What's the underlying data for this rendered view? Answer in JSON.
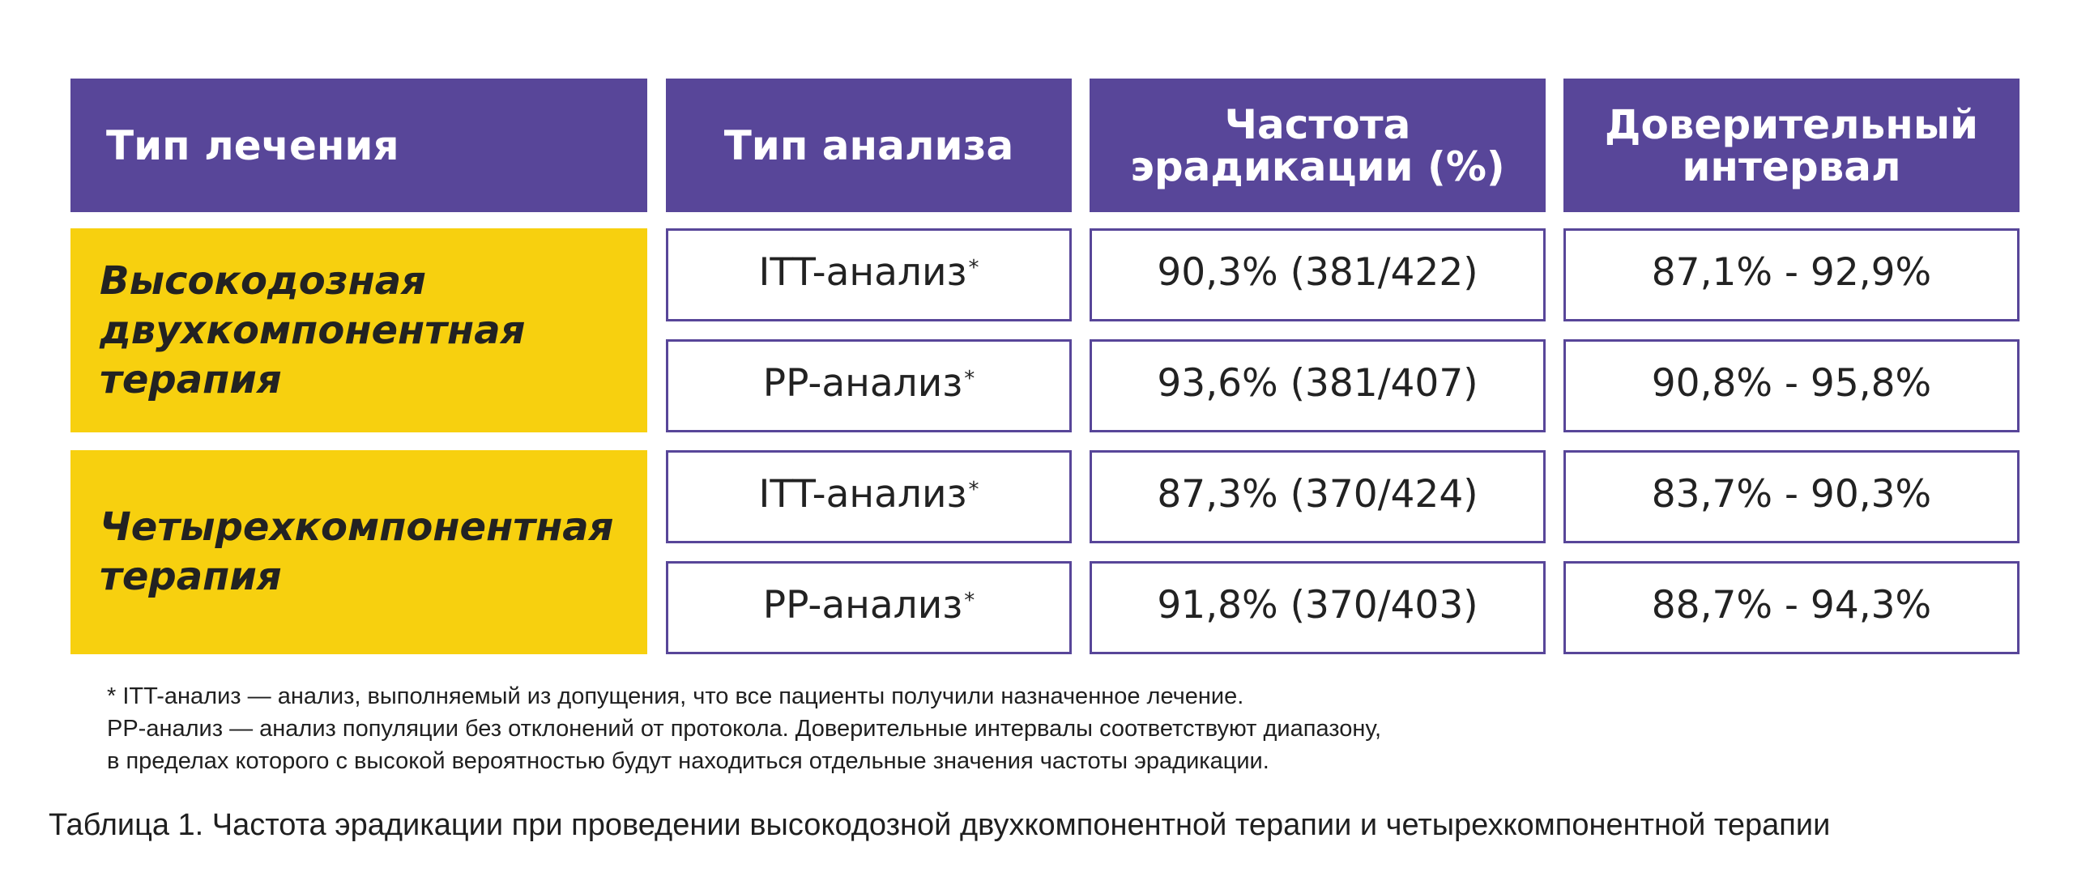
{
  "table": {
    "headers": {
      "treatment": "Тип лечения",
      "analysis": "Тип анализа",
      "rate_line1": "Частота",
      "rate_line2": "эрадикации (%)",
      "ci_line1": "Доверительный",
      "ci_line2": "интервал"
    },
    "groups": [
      {
        "name_lines": [
          "Высокодозная",
          "двухкомпонентная",
          "терапия"
        ],
        "rows": [
          {
            "analysis": "ITT-анализ",
            "mark": "*",
            "rate": "90,3% (381/422)",
            "ci": "87,1% - 92,9%"
          },
          {
            "analysis": "PP-анализ",
            "mark": "*",
            "rate": "93,6% (381/407)",
            "ci": "90,8% - 95,8%"
          }
        ]
      },
      {
        "name_lines": [
          "Четырехкомпонентная",
          "терапия"
        ],
        "rows": [
          {
            "analysis": "ITT-анализ",
            "mark": "*",
            "rate": "87,3% (370/424)",
            "ci": "83,7% - 90,3%"
          },
          {
            "analysis": "PP-анализ",
            "mark": "*",
            "rate": "91,8% (370/403)",
            "ci": "88,7% - 94,3%"
          }
        ]
      }
    ]
  },
  "footnotes": [
    "* ITT-анализ — анализ, выполняемый из допущения, что все пациенты получили назначенное лечение.",
    "PP-анализ — анализ популяции без отклонений от протокола. Доверительные интервалы соответствуют диапазону,",
    "в пределах которого с высокой вероятностью будут находиться отдельные значения частоты эрадикации."
  ],
  "caption": "Таблица 1. Частота эрадикации при проведении высокодозной двухкомпонентной терапии и четырехкомпонентной терапии"
}
